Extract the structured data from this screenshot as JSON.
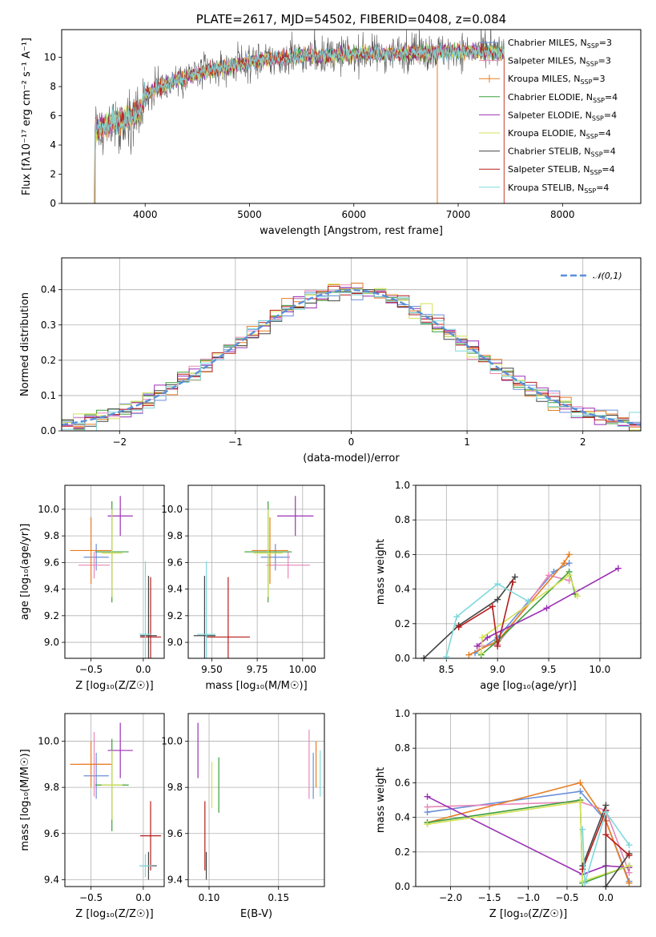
{
  "chart_data": [
    {
      "type": "line",
      "title": "PLATE=2617, MJD=54502, FIBERID=0408, z=0.084",
      "xlabel": "wavelength [Angstrom, rest frame]",
      "ylabel": "Flux [fλ10⁻¹⁷ erg cm⁻² s⁻¹ A⁻¹]",
      "xlim": [
        3200,
        8750
      ],
      "ylim": [
        0,
        11.9
      ],
      "xticks": [
        4000,
        5000,
        6000,
        7000,
        8000
      ],
      "yticks": [
        0,
        2,
        4,
        6,
        8,
        10
      ],
      "grid": false,
      "legend_position": "right",
      "observed_range": [
        3520,
        7440
      ],
      "spectrum_anchors": [
        {
          "x": 3520,
          "y": 5.0
        },
        {
          "x": 3700,
          "y": 5.6
        },
        {
          "x": 3850,
          "y": 5.8
        },
        {
          "x": 3950,
          "y": 6.3
        },
        {
          "x": 4000,
          "y": 7.4
        },
        {
          "x": 4200,
          "y": 8.2
        },
        {
          "x": 4500,
          "y": 8.9
        },
        {
          "x": 5000,
          "y": 9.7
        },
        {
          "x": 5500,
          "y": 10.1
        },
        {
          "x": 6000,
          "y": 10.2
        },
        {
          "x": 6500,
          "y": 10.3
        },
        {
          "x": 7000,
          "y": 10.4
        },
        {
          "x": 7440,
          "y": 10.3
        }
      ],
      "series": [
        {
          "name": "Chabrier MILES, N",
          "sub": "SSP",
          "suffix": "=3",
          "color": "#6a8fd8"
        },
        {
          "name": "Salpeter MILES, N",
          "sub": "SSP",
          "suffix": "=3",
          "color": "#e887b8"
        },
        {
          "name": "Kroupa MILES, N",
          "sub": "SSP",
          "suffix": "=3",
          "color": "#e67e22"
        },
        {
          "name": "Chabrier ELODIE, N",
          "sub": "SSP",
          "suffix": "=4",
          "color": "#3a9e3a"
        },
        {
          "name": "Salpeter ELODIE, N",
          "sub": "SSP",
          "suffix": "=4",
          "color": "#9b30b5"
        },
        {
          "name": "Kroupa ELODIE, N",
          "sub": "SSP",
          "suffix": "=4",
          "color": "#d4e157"
        },
        {
          "name": "Chabrier STELIB, N",
          "sub": "SSP",
          "suffix": "=4",
          "color": "#444444"
        },
        {
          "name": "Salpeter STELIB, N",
          "sub": "SSP",
          "suffix": "=4",
          "color": "#b71c1c"
        },
        {
          "name": "Kroupa STELIB, N",
          "sub": "SSP",
          "suffix": "=4",
          "color": "#7fd8dc"
        }
      ]
    },
    {
      "type": "line",
      "title": "",
      "xlabel": "(data-model)/error",
      "ylabel": "Normed distribution",
      "xlim": [
        -2.5,
        2.5
      ],
      "ylim": [
        0,
        0.49
      ],
      "xticks": [
        -2,
        -1,
        0,
        1,
        2
      ],
      "yticks": [
        0.0,
        0.1,
        0.2,
        0.3,
        0.4
      ],
      "grid": true,
      "legend_position": "top-right",
      "bin_width": 0.1,
      "reference_curve": {
        "name": "𝒩(0,1)",
        "color": "#5b8fd9",
        "style": "dashed",
        "mean": 0,
        "sigma": 1
      },
      "histogram_series_colors": [
        "#6a8fd8",
        "#e887b8",
        "#e67e22",
        "#3a9e3a",
        "#9b30b5",
        "#d4e157",
        "#444444",
        "#b71c1c",
        "#7fd8dc"
      ]
    },
    {
      "type": "scatter",
      "xlabel": "Z [log₁₀(Z/Z☉)]",
      "ylabel": "age  [log₁₀(age/yr)]",
      "xlim": [
        -0.75,
        0.2
      ],
      "ylim": [
        8.88,
        10.18
      ],
      "xticks": [
        -0.5,
        0.0
      ],
      "yticks": [
        9.0,
        9.2,
        9.4,
        9.6,
        9.8,
        10.0
      ],
      "grid": true,
      "points": [
        {
          "x": -0.45,
          "y": 9.64,
          "xerr": 0.12,
          "yerr": 0.1,
          "color": "#6a8fd8"
        },
        {
          "x": -0.47,
          "y": 9.58,
          "xerr": 0.15,
          "yerr": 0.1,
          "color": "#e887b8"
        },
        {
          "x": -0.5,
          "y": 9.69,
          "xerr": 0.2,
          "yerr": 0.25,
          "color": "#e67e22"
        },
        {
          "x": -0.3,
          "y": 9.68,
          "xerr": 0.16,
          "yerr": 0.38,
          "color": "#3a9e3a"
        },
        {
          "x": -0.22,
          "y": 9.95,
          "xerr": 0.12,
          "yerr": 0.15,
          "color": "#9b30b5"
        },
        {
          "x": -0.3,
          "y": 9.67,
          "xerr": 0.1,
          "yerr": 0.33,
          "color": "#d4e157"
        },
        {
          "x": 0.05,
          "y": 9.05,
          "xerr": 0.08,
          "yerr": 0.45,
          "color": "#444444"
        },
        {
          "x": 0.07,
          "y": 9.04,
          "xerr": 0.1,
          "yerr": 0.45,
          "color": "#b71c1c"
        },
        {
          "x": 0.02,
          "y": 9.06,
          "xerr": 0.06,
          "yerr": 0.55,
          "color": "#7fd8dc"
        }
      ]
    },
    {
      "type": "scatter",
      "xlabel": "mass [log₁₀(M/M☉)]",
      "ylabel": "",
      "xlim": [
        9.37,
        10.12
      ],
      "ylim": [
        8.88,
        10.18
      ],
      "xticks": [
        9.5,
        9.75,
        10.0
      ],
      "yticks": [
        9.0,
        9.2,
        9.4,
        9.6,
        9.8,
        10.0
      ],
      "grid": true,
      "points": [
        {
          "x": 9.85,
          "y": 9.64,
          "xerr": 0.08,
          "yerr": 0.1,
          "color": "#6a8fd8"
        },
        {
          "x": 9.92,
          "y": 9.58,
          "xerr": 0.12,
          "yerr": 0.1,
          "color": "#e887b8"
        },
        {
          "x": 9.82,
          "y": 9.69,
          "xerr": 0.1,
          "yerr": 0.25,
          "color": "#e67e22"
        },
        {
          "x": 9.81,
          "y": 9.68,
          "xerr": 0.13,
          "yerr": 0.38,
          "color": "#3a9e3a"
        },
        {
          "x": 9.96,
          "y": 9.95,
          "xerr": 0.1,
          "yerr": 0.15,
          "color": "#9b30b5"
        },
        {
          "x": 9.81,
          "y": 9.67,
          "xerr": 0.08,
          "yerr": 0.33,
          "color": "#d4e157"
        },
        {
          "x": 9.46,
          "y": 9.05,
          "xerr": 0.06,
          "yerr": 0.45,
          "color": "#444444"
        },
        {
          "x": 9.59,
          "y": 9.04,
          "xerr": 0.12,
          "yerr": 0.45,
          "color": "#b71c1c"
        },
        {
          "x": 9.47,
          "y": 9.06,
          "xerr": 0.05,
          "yerr": 0.55,
          "color": "#7fd8dc"
        }
      ]
    },
    {
      "type": "line",
      "xlabel": "age  [log₁₀(age/yr)]",
      "ylabel": "mass weight",
      "xlim": [
        8.2,
        10.4
      ],
      "ylim": [
        0,
        1.0
      ],
      "xticks": [
        8.5,
        9.0,
        9.5,
        10.0
      ],
      "yticks": [
        0.0,
        0.2,
        0.4,
        0.6,
        0.8,
        1.0
      ],
      "grid": true,
      "series": [
        {
          "color": "#6a8fd8",
          "points": [
            [
              8.78,
              0.03
            ],
            [
              9.0,
              0.12
            ],
            [
              9.55,
              0.5
            ],
            [
              9.7,
              0.55
            ]
          ]
        },
        {
          "color": "#e887b8",
          "points": [
            [
              8.82,
              0.07
            ],
            [
              9.0,
              0.08
            ],
            [
              9.5,
              0.48
            ],
            [
              9.7,
              0.45
            ]
          ]
        },
        {
          "color": "#e67e22",
          "points": [
            [
              8.72,
              0.02
            ],
            [
              9.0,
              0.1
            ],
            [
              9.65,
              0.55
            ],
            [
              9.7,
              0.6
            ]
          ]
        },
        {
          "color": "#3a9e3a",
          "points": [
            [
              8.84,
              0.02
            ],
            [
              9.0,
              0.1
            ],
            [
              9.7,
              0.5
            ],
            [
              9.76,
              0.37
            ]
          ]
        },
        {
          "color": "#9b30b5",
          "points": [
            [
              8.8,
              0.07
            ],
            [
              8.9,
              0.12
            ],
            [
              9.48,
              0.29
            ],
            [
              10.18,
              0.52
            ]
          ]
        },
        {
          "color": "#d4e157",
          "points": [
            [
              8.84,
              0.03
            ],
            [
              8.85,
              0.12
            ],
            [
              9.7,
              0.48
            ],
            [
              9.78,
              0.36
            ]
          ]
        },
        {
          "color": "#444444",
          "points": [
            [
              8.28,
              0.0
            ],
            [
              8.62,
              0.19
            ],
            [
              9.0,
              0.34
            ],
            [
              9.17,
              0.47
            ]
          ]
        },
        {
          "color": "#b71c1c",
          "points": [
            [
              8.62,
              0.18
            ],
            [
              8.95,
              0.3
            ],
            [
              9.0,
              0.07
            ],
            [
              9.15,
              0.44
            ]
          ]
        },
        {
          "color": "#7fd8dc",
          "points": [
            [
              8.5,
              0.01
            ],
            [
              8.6,
              0.24
            ],
            [
              9.0,
              0.43
            ],
            [
              9.3,
              0.33
            ]
          ]
        }
      ]
    },
    {
      "type": "scatter",
      "xlabel": "Z [log₁₀(Z/Z☉)]",
      "ylabel": "mass [log₁₀(M/M☉)]",
      "xlim": [
        -0.75,
        0.2
      ],
      "ylim": [
        9.37,
        10.12
      ],
      "xticks": [
        -0.5,
        0.0
      ],
      "yticks": [
        9.4,
        9.6,
        9.8,
        10.0
      ],
      "grid": true,
      "points": [
        {
          "x": -0.45,
          "y": 9.85,
          "xerr": 0.12,
          "yerr": 0.1,
          "color": "#6a8fd8"
        },
        {
          "x": -0.47,
          "y": 9.9,
          "xerr": 0.15,
          "yerr": 0.14,
          "color": "#e887b8"
        },
        {
          "x": -0.5,
          "y": 9.9,
          "xerr": 0.2,
          "yerr": 0.1,
          "color": "#e67e22"
        },
        {
          "x": -0.3,
          "y": 9.81,
          "xerr": 0.16,
          "yerr": 0.2,
          "color": "#3a9e3a"
        },
        {
          "x": -0.22,
          "y": 9.96,
          "xerr": 0.12,
          "yerr": 0.12,
          "color": "#9b30b5"
        },
        {
          "x": -0.3,
          "y": 9.81,
          "xerr": 0.1,
          "yerr": 0.15,
          "color": "#d4e157"
        },
        {
          "x": 0.05,
          "y": 9.46,
          "xerr": 0.08,
          "yerr": 0.06,
          "color": "#444444"
        },
        {
          "x": 0.07,
          "y": 9.59,
          "xerr": 0.1,
          "yerr": 0.15,
          "color": "#b71c1c"
        },
        {
          "x": 0.02,
          "y": 9.46,
          "xerr": 0.06,
          "yerr": 0.05,
          "color": "#7fd8dc"
        }
      ]
    },
    {
      "type": "scatter",
      "xlabel": "E(B-V)",
      "ylabel": "",
      "xlim": [
        0.085,
        0.183
      ],
      "ylim": [
        9.37,
        10.12
      ],
      "xticks": [
        0.1,
        0.15
      ],
      "yticks": [
        9.4,
        9.6,
        9.8,
        10.0
      ],
      "grid": true,
      "points": [
        {
          "x": 0.175,
          "y": 9.85,
          "yerr": 0.1,
          "color": "#6a8fd8"
        },
        {
          "x": 0.172,
          "y": 9.9,
          "yerr": 0.15,
          "color": "#e887b8"
        },
        {
          "x": 0.177,
          "y": 9.9,
          "yerr": 0.1,
          "color": "#e67e22"
        },
        {
          "x": 0.107,
          "y": 9.81,
          "yerr": 0.12,
          "color": "#3a9e3a"
        },
        {
          "x": 0.092,
          "y": 9.96,
          "yerr": 0.12,
          "color": "#9b30b5"
        },
        {
          "x": 0.102,
          "y": 9.81,
          "yerr": 0.1,
          "color": "#d4e157"
        },
        {
          "x": 0.098,
          "y": 9.46,
          "yerr": 0.06,
          "color": "#444444"
        },
        {
          "x": 0.097,
          "y": 9.59,
          "yerr": 0.15,
          "color": "#b71c1c"
        },
        {
          "x": 0.18,
          "y": 9.86,
          "yerr": 0.1,
          "color": "#7fd8dc"
        }
      ]
    },
    {
      "type": "line",
      "xlabel": "Z [log₁₀(Z/Z☉)]",
      "ylabel": "mass weight",
      "xlim": [
        -2.45,
        0.45
      ],
      "ylim": [
        0,
        1.0
      ],
      "xticks": [
        -2.0,
        -1.5,
        -1.0,
        -0.5,
        0.0
      ],
      "yticks": [
        0.0,
        0.2,
        0.4,
        0.6,
        0.8,
        1.0
      ],
      "grid": true,
      "series": [
        {
          "color": "#6a8fd8",
          "points": [
            [
              -2.3,
              0.43
            ],
            [
              -0.33,
              0.55
            ],
            [
              0.0,
              0.38
            ],
            [
              0.3,
              0.03
            ]
          ]
        },
        {
          "color": "#e887b8",
          "points": [
            [
              -2.3,
              0.46
            ],
            [
              -0.33,
              0.49
            ],
            [
              0.0,
              0.44
            ],
            [
              0.3,
              0.08
            ]
          ]
        },
        {
          "color": "#e67e22",
          "points": [
            [
              -2.3,
              0.37
            ],
            [
              -0.33,
              0.6
            ],
            [
              0.0,
              0.38
            ],
            [
              0.3,
              0.02
            ]
          ]
        },
        {
          "color": "#3a9e3a",
          "points": [
            [
              -2.3,
              0.37
            ],
            [
              -0.33,
              0.5
            ],
            [
              -0.3,
              0.02
            ],
            [
              0.3,
              0.12
            ]
          ]
        },
        {
          "color": "#9b30b5",
          "points": [
            [
              -2.3,
              0.52
            ],
            [
              -0.3,
              0.07
            ],
            [
              0.0,
              0.12
            ],
            [
              0.3,
              0.11
            ]
          ]
        },
        {
          "color": "#d4e157",
          "points": [
            [
              -2.3,
              0.36
            ],
            [
              -0.33,
              0.49
            ],
            [
              -0.3,
              0.03
            ],
            [
              0.3,
              0.12
            ]
          ]
        },
        {
          "color": "#444444",
          "points": [
            [
              -0.3,
              0.12
            ],
            [
              0.0,
              0.47
            ],
            [
              0.0,
              0.0
            ],
            [
              0.3,
              0.19
            ]
          ]
        },
        {
          "color": "#b71c1c",
          "points": [
            [
              -0.3,
              0.1
            ],
            [
              0.0,
              0.44
            ],
            [
              0.0,
              0.3
            ],
            [
              0.3,
              0.18
            ]
          ]
        },
        {
          "color": "#7fd8dc",
          "points": [
            [
              -0.3,
              0.33
            ],
            [
              -0.27,
              0.02
            ],
            [
              0.0,
              0.43
            ],
            [
              0.3,
              0.24
            ]
          ]
        }
      ]
    }
  ]
}
